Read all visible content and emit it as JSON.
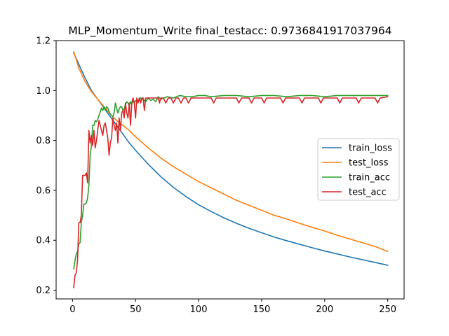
{
  "chart_data": {
    "type": "line",
    "title": "MLP_Momentum_Write  final_testacc: 0.9736841917037964",
    "xlabel": "",
    "ylabel": "",
    "xlim": [
      -13,
      263
    ],
    "ylim": [
      0.165,
      1.2
    ],
    "xticks": [
      0,
      50,
      100,
      150,
      200,
      250
    ],
    "yticks": [
      0.2,
      0.4,
      0.6,
      0.8,
      1.0,
      1.2
    ],
    "ytick_labels": [
      "0.2",
      "0.4",
      "0.6",
      "0.8",
      "1.0",
      "1.2"
    ],
    "grid": false,
    "legend_position": "center-right",
    "series": [
      {
        "name": "train_loss",
        "color": "#1f77b4",
        "x": [
          1,
          5,
          10,
          15,
          20,
          25,
          30,
          35,
          40,
          45,
          50,
          60,
          70,
          80,
          90,
          100,
          110,
          120,
          130,
          140,
          150,
          160,
          170,
          180,
          190,
          200,
          210,
          220,
          230,
          240,
          250
        ],
        "y": [
          1.15,
          1.105,
          1.05,
          1.0,
          0.965,
          0.93,
          0.895,
          0.86,
          0.825,
          0.79,
          0.76,
          0.705,
          0.655,
          0.612,
          0.575,
          0.542,
          0.515,
          0.49,
          0.468,
          0.448,
          0.43,
          0.413,
          0.398,
          0.384,
          0.37,
          0.357,
          0.345,
          0.333,
          0.322,
          0.311,
          0.3
        ]
      },
      {
        "name": "test_loss",
        "color": "#ff7f0e",
        "x": [
          1,
          5,
          10,
          15,
          20,
          25,
          30,
          35,
          40,
          45,
          50,
          60,
          70,
          80,
          90,
          100,
          110,
          120,
          130,
          140,
          150,
          160,
          170,
          180,
          190,
          200,
          210,
          220,
          230,
          240,
          250
        ],
        "y": [
          1.155,
          1.09,
          1.035,
          0.995,
          0.965,
          0.935,
          0.905,
          0.88,
          0.86,
          0.84,
          0.815,
          0.77,
          0.73,
          0.695,
          0.665,
          0.635,
          0.61,
          0.585,
          0.56,
          0.54,
          0.52,
          0.5,
          0.485,
          0.468,
          0.452,
          0.437,
          0.42,
          0.405,
          0.39,
          0.375,
          0.355
        ]
      },
      {
        "name": "train_acc",
        "color": "#2ca02c",
        "x": [
          1,
          2,
          3,
          4,
          5,
          6,
          7,
          8,
          9,
          10,
          11,
          12,
          13,
          14,
          15,
          16,
          17,
          18,
          19,
          20,
          21,
          22,
          23,
          24,
          25,
          26,
          27,
          28,
          29,
          30,
          31,
          32,
          33,
          34,
          35,
          36,
          37,
          38,
          39,
          40,
          41,
          42,
          43,
          44,
          45,
          46,
          47,
          48,
          49,
          50,
          52,
          54,
          56,
          58,
          60,
          62,
          64,
          66,
          68,
          70,
          75,
          80,
          85,
          90,
          95,
          100,
          105,
          110,
          120,
          130,
          140,
          150,
          160,
          170,
          180,
          190,
          200,
          210,
          220,
          230,
          240,
          250
        ],
        "y": [
          0.285,
          0.32,
          0.345,
          0.355,
          0.385,
          0.39,
          0.47,
          0.5,
          0.545,
          0.545,
          0.55,
          0.57,
          0.62,
          0.74,
          0.78,
          0.86,
          0.86,
          0.88,
          0.875,
          0.885,
          0.9,
          0.915,
          0.93,
          0.92,
          0.935,
          0.92,
          0.935,
          0.93,
          0.915,
          0.905,
          0.9,
          0.895,
          0.91,
          0.95,
          0.93,
          0.91,
          0.925,
          0.935,
          0.935,
          0.92,
          0.925,
          0.945,
          0.955,
          0.95,
          0.94,
          0.955,
          0.945,
          0.96,
          0.95,
          0.96,
          0.955,
          0.97,
          0.965,
          0.955,
          0.97,
          0.96,
          0.965,
          0.955,
          0.975,
          0.965,
          0.975,
          0.97,
          0.98,
          0.975,
          0.975,
          0.98,
          0.98,
          0.975,
          0.98,
          0.98,
          0.975,
          0.98,
          0.98,
          0.975,
          0.98,
          0.98,
          0.975,
          0.98,
          0.98,
          0.98,
          0.98,
          0.98
        ]
      },
      {
        "name": "test_acc",
        "color": "#d62728",
        "x": [
          1,
          2,
          3,
          4,
          5,
          6,
          7,
          8,
          9,
          10,
          11,
          12,
          13,
          14,
          15,
          16,
          17,
          18,
          19,
          20,
          21,
          22,
          23,
          24,
          25,
          26,
          27,
          28,
          29,
          30,
          31,
          32,
          33,
          34,
          35,
          36,
          37,
          38,
          39,
          40,
          41,
          42,
          43,
          44,
          45,
          46,
          47,
          48,
          49,
          50,
          51,
          52,
          53,
          54,
          55,
          56,
          57,
          58,
          59,
          60,
          61,
          62,
          63,
          64,
          65,
          66,
          67,
          68,
          69,
          70,
          72,
          74,
          76,
          78,
          80,
          82,
          84,
          86,
          88,
          90,
          92,
          94,
          96,
          98,
          100,
          110,
          112,
          114,
          130,
          132,
          134,
          140,
          142,
          144,
          150,
          152,
          154,
          165,
          167,
          169,
          180,
          182,
          184,
          195,
          197,
          199,
          210,
          212,
          214,
          225,
          227,
          229,
          240,
          242,
          244,
          250
        ],
        "y": [
          0.21,
          0.26,
          0.27,
          0.32,
          0.47,
          0.47,
          0.5,
          0.66,
          0.66,
          0.66,
          0.67,
          0.63,
          0.84,
          0.79,
          0.82,
          0.78,
          0.84,
          0.77,
          0.8,
          0.84,
          0.88,
          0.86,
          0.84,
          0.82,
          0.86,
          0.87,
          0.84,
          0.81,
          0.74,
          0.79,
          0.81,
          0.89,
          0.86,
          0.84,
          0.87,
          0.79,
          0.89,
          0.84,
          0.91,
          0.92,
          0.89,
          0.95,
          0.91,
          0.89,
          0.95,
          0.86,
          0.95,
          0.97,
          0.95,
          0.89,
          0.97,
          0.95,
          0.97,
          0.95,
          0.97,
          0.97,
          0.92,
          0.97,
          0.97,
          0.97,
          0.97,
          0.97,
          0.97,
          0.97,
          0.97,
          0.97,
          0.97,
          0.97,
          0.95,
          0.97,
          0.97,
          0.95,
          0.97,
          0.97,
          0.95,
          0.97,
          0.97,
          0.95,
          0.97,
          0.97,
          0.95,
          0.97,
          0.97,
          0.97,
          0.97,
          0.97,
          0.95,
          0.97,
          0.97,
          0.95,
          0.97,
          0.97,
          0.95,
          0.97,
          0.97,
          0.95,
          0.97,
          0.97,
          0.95,
          0.97,
          0.97,
          0.95,
          0.97,
          0.97,
          0.95,
          0.97,
          0.97,
          0.95,
          0.97,
          0.97,
          0.95,
          0.97,
          0.97,
          0.95,
          0.97,
          0.975
        ]
      }
    ]
  }
}
